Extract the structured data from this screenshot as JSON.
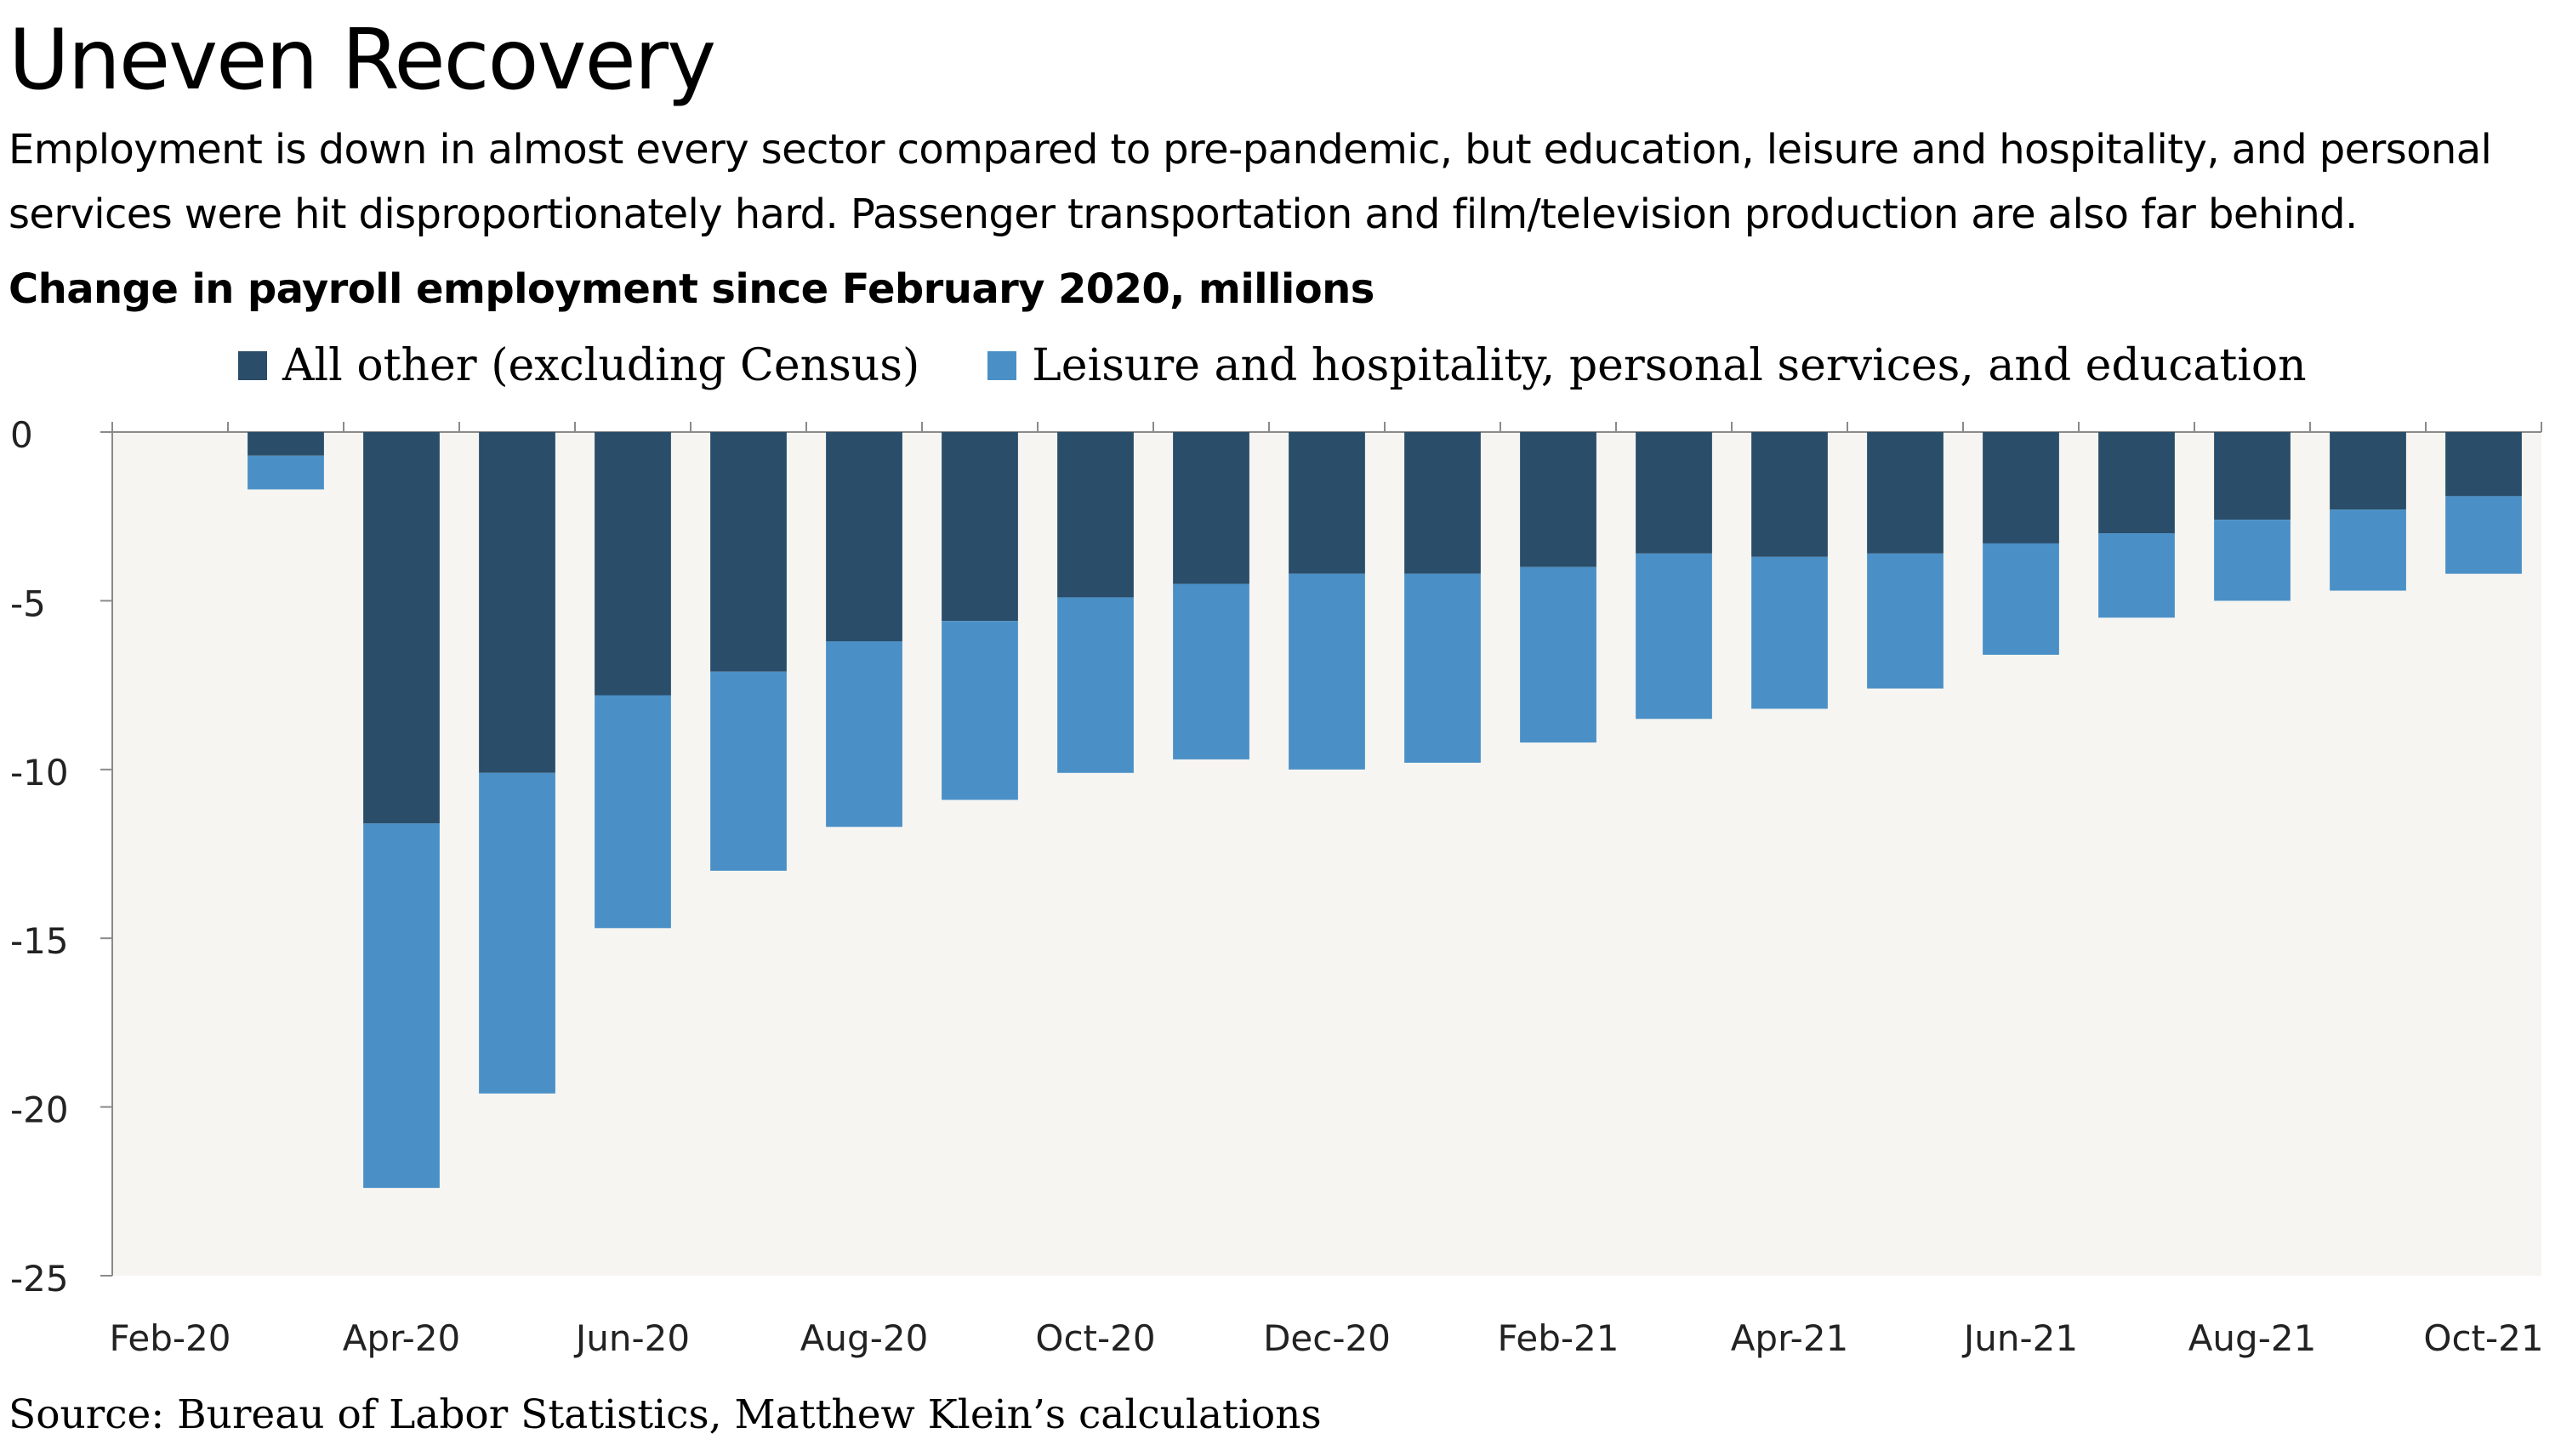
{
  "header": {
    "title": "Uneven Recovery",
    "subtitle": "Employment is down in almost every sector compared to pre-pandemic, but education, leisure and hospitality, and personal services were hit disproportionately hard. Passenger transportation and film/television production are also far behind.",
    "unit_label": "Change in payroll employment since February 2020, millions"
  },
  "legend": {
    "items": [
      {
        "label": "All other (excluding Census)",
        "color": "#2a4d69"
      },
      {
        "label": "Leisure and hospitality, personal services, and education",
        "color": "#4a90c6"
      }
    ]
  },
  "source": "Source: Bureau of Labor Statistics, Matthew Klein’s calculations",
  "chart_data": {
    "type": "bar",
    "stacked": true,
    "categories": [
      "Feb-20",
      "Mar-20",
      "Apr-20",
      "May-20",
      "Jun-20",
      "Jul-20",
      "Aug-20",
      "Sep-20",
      "Oct-20",
      "Nov-20",
      "Dec-20",
      "Jan-21",
      "Feb-21",
      "Mar-21",
      "Apr-21",
      "May-21",
      "Jun-21",
      "Jul-21",
      "Aug-21",
      "Sep-21",
      "Oct-21"
    ],
    "x_tick_labels": [
      "Feb-20",
      "Apr-20",
      "Jun-20",
      "Aug-20",
      "Oct-20",
      "Dec-20",
      "Feb-21",
      "Apr-21",
      "Jun-21",
      "Aug-21",
      "Oct-21"
    ],
    "series": [
      {
        "name": "All other (excluding Census)",
        "color": "#2a4d69",
        "values": [
          0,
          -0.7,
          -11.6,
          -10.1,
          -7.8,
          -7.1,
          -6.2,
          -5.6,
          -4.9,
          -4.5,
          -4.2,
          -4.2,
          -4.0,
          -3.6,
          -3.7,
          -3.6,
          -3.3,
          -3.0,
          -2.6,
          -2.3,
          -1.9
        ]
      },
      {
        "name": "Leisure and hospitality, personal services, and education",
        "color": "#4a90c6",
        "values": [
          0,
          -1.0,
          -10.8,
          -9.5,
          -6.9,
          -5.9,
          -5.5,
          -5.3,
          -5.2,
          -5.2,
          -5.8,
          -5.6,
          -5.2,
          -4.9,
          -4.5,
          -4.0,
          -3.3,
          -2.5,
          -2.4,
          -2.4,
          -2.3
        ]
      }
    ],
    "y_ticks": [
      0,
      -5,
      -10,
      -15,
      -20,
      -25
    ],
    "ylim": [
      -25,
      0
    ],
    "plot_background": "#f6f5f2",
    "grid": false
  }
}
